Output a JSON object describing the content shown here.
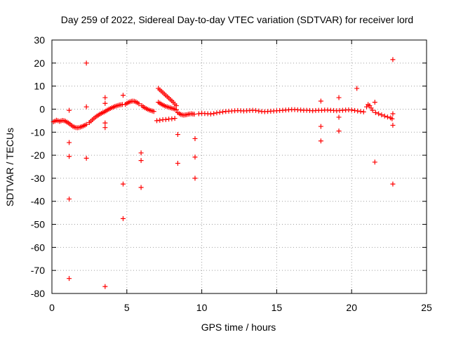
{
  "chart_data": {
    "type": "scatter",
    "title": "Day 259 of 2022, Sidereal Day-to-day VTEC variation (SDTVAR) for receiver lord",
    "xlabel": "GPS time / hours",
    "ylabel": "SDTVAR / TECUs",
    "xlim": [
      0,
      25
    ],
    "ylim": [
      -80,
      30
    ],
    "xticks": [
      0,
      5,
      10,
      15,
      20,
      25
    ],
    "yticks": [
      -80,
      -70,
      -60,
      -50,
      -40,
      -30,
      -20,
      -10,
      0,
      10,
      20,
      30
    ],
    "xtick_labels": [
      "0",
      "5",
      "10",
      "15",
      "20",
      "25"
    ],
    "ytick_labels": [
      "-80",
      "-70",
      "-60",
      "-50",
      "-40",
      "-30",
      "-20",
      "-10",
      "0",
      "10",
      "20",
      "30"
    ],
    "grid": true,
    "marker": "+",
    "color": "#ff0000",
    "series": [
      {
        "name": "main-trace",
        "points": [
          [
            0.1,
            -5.5
          ],
          [
            0.2,
            -5.2
          ],
          [
            0.3,
            -4.8
          ],
          [
            0.4,
            -5.0
          ],
          [
            0.5,
            -5.3
          ],
          [
            0.6,
            -5.1
          ],
          [
            0.7,
            -4.9
          ],
          [
            0.8,
            -5.0
          ],
          [
            0.9,
            -5.2
          ],
          [
            1.0,
            -5.6
          ],
          [
            1.1,
            -6.0
          ],
          [
            1.2,
            -6.5
          ],
          [
            1.3,
            -7.0
          ],
          [
            1.4,
            -7.5
          ],
          [
            1.5,
            -7.8
          ],
          [
            1.6,
            -8.0
          ],
          [
            1.7,
            -8.1
          ],
          [
            1.8,
            -8.0
          ],
          [
            1.9,
            -7.8
          ],
          [
            2.0,
            -7.6
          ],
          [
            2.1,
            -7.3
          ],
          [
            2.2,
            -7.0
          ],
          [
            2.3,
            -6.6
          ],
          [
            2.5,
            -5.8
          ],
          [
            2.6,
            -5.2
          ],
          [
            2.7,
            -4.6
          ],
          [
            2.8,
            -4.0
          ],
          [
            2.9,
            -3.5
          ],
          [
            3.0,
            -3.0
          ],
          [
            3.1,
            -2.6
          ],
          [
            3.2,
            -2.2
          ],
          [
            3.3,
            -1.8
          ],
          [
            3.4,
            -1.5
          ],
          [
            3.5,
            -1.2
          ],
          [
            3.6,
            -0.8
          ],
          [
            3.7,
            -0.4
          ],
          [
            3.8,
            0.0
          ],
          [
            3.9,
            0.3
          ],
          [
            4.0,
            0.6
          ],
          [
            4.1,
            0.9
          ],
          [
            4.2,
            1.2
          ],
          [
            4.3,
            1.4
          ],
          [
            4.4,
            1.6
          ],
          [
            4.5,
            1.8
          ],
          [
            4.6,
            1.9
          ],
          [
            4.7,
            2.0
          ],
          [
            4.9,
            2.1
          ],
          [
            5.0,
            2.5
          ],
          [
            5.1,
            2.9
          ],
          [
            5.2,
            3.2
          ],
          [
            5.3,
            3.4
          ],
          [
            5.4,
            3.5
          ],
          [
            5.5,
            3.4
          ],
          [
            5.6,
            3.2
          ],
          [
            5.7,
            2.8
          ],
          [
            5.8,
            2.3
          ],
          [
            6.0,
            1.5
          ],
          [
            6.1,
            1.0
          ],
          [
            6.2,
            0.6
          ],
          [
            6.3,
            0.2
          ],
          [
            6.4,
            -0.1
          ],
          [
            6.5,
            -0.4
          ],
          [
            6.6,
            -0.6
          ],
          [
            6.7,
            -0.8
          ],
          [
            6.8,
            -1.0
          ],
          [
            7.0,
            -5.0
          ],
          [
            7.2,
            -4.8
          ],
          [
            7.4,
            -4.6
          ],
          [
            7.6,
            -4.5
          ],
          [
            7.8,
            -4.3
          ],
          [
            8.0,
            -4.2
          ],
          [
            8.2,
            -4.0
          ],
          [
            7.1,
            3.0
          ],
          [
            7.2,
            2.6
          ],
          [
            7.3,
            2.2
          ],
          [
            7.4,
            1.8
          ],
          [
            7.5,
            1.5
          ],
          [
            7.6,
            1.2
          ],
          [
            7.7,
            1.0
          ],
          [
            7.8,
            0.8
          ],
          [
            7.9,
            0.6
          ],
          [
            8.0,
            0.4
          ],
          [
            8.1,
            0.2
          ],
          [
            8.2,
            0.0
          ],
          [
            8.3,
            -0.3
          ],
          [
            7.1,
            9.0
          ],
          [
            7.2,
            8.4
          ],
          [
            7.3,
            7.8
          ],
          [
            7.4,
            7.2
          ],
          [
            7.5,
            6.6
          ],
          [
            7.6,
            6.0
          ],
          [
            7.7,
            5.4
          ],
          [
            7.8,
            4.8
          ],
          [
            7.9,
            4.2
          ],
          [
            8.0,
            3.6
          ],
          [
            8.1,
            3.0
          ],
          [
            8.2,
            2.2
          ],
          [
            8.3,
            1.5
          ],
          [
            8.4,
            -1.5
          ],
          [
            8.5,
            -2.0
          ],
          [
            8.6,
            -2.3
          ],
          [
            8.7,
            -2.5
          ],
          [
            8.8,
            -2.6
          ],
          [
            8.9,
            -2.5
          ],
          [
            9.0,
            -2.4
          ],
          [
            9.1,
            -2.2
          ],
          [
            9.2,
            -2.1
          ],
          [
            9.3,
            -2.0
          ],
          [
            9.4,
            -2.1
          ],
          [
            9.5,
            -2.2
          ],
          [
            9.8,
            -2.0
          ],
          [
            10.0,
            -1.8
          ],
          [
            10.2,
            -1.9
          ],
          [
            10.4,
            -2.0
          ],
          [
            10.6,
            -2.1
          ],
          [
            10.8,
            -1.9
          ],
          [
            11.0,
            -1.6
          ],
          [
            11.2,
            -1.4
          ],
          [
            11.4,
            -1.2
          ],
          [
            11.6,
            -1.0
          ],
          [
            11.8,
            -0.9
          ],
          [
            12.0,
            -0.8
          ],
          [
            12.2,
            -0.7
          ],
          [
            12.4,
            -0.6
          ],
          [
            12.6,
            -0.7
          ],
          [
            12.8,
            -0.8
          ],
          [
            13.0,
            -0.7
          ],
          [
            13.2,
            -0.6
          ],
          [
            13.4,
            -0.5
          ],
          [
            13.6,
            -0.6
          ],
          [
            13.8,
            -0.8
          ],
          [
            14.0,
            -1.0
          ],
          [
            14.2,
            -1.1
          ],
          [
            14.4,
            -1.0
          ],
          [
            14.6,
            -0.9
          ],
          [
            14.8,
            -0.8
          ],
          [
            15.0,
            -0.7
          ],
          [
            15.2,
            -0.6
          ],
          [
            15.4,
            -0.5
          ],
          [
            15.6,
            -0.4
          ],
          [
            15.8,
            -0.3
          ],
          [
            16.0,
            -0.2
          ],
          [
            16.2,
            -0.2
          ],
          [
            16.4,
            -0.3
          ],
          [
            16.6,
            -0.4
          ],
          [
            16.8,
            -0.5
          ],
          [
            17.0,
            -0.5
          ],
          [
            17.2,
            -0.6
          ],
          [
            17.4,
            -0.7
          ],
          [
            17.6,
            -0.6
          ],
          [
            17.8,
            -0.5
          ],
          [
            18.0,
            -0.5
          ],
          [
            18.2,
            -0.4
          ],
          [
            18.4,
            -0.4
          ],
          [
            18.6,
            -0.5
          ],
          [
            18.8,
            -0.6
          ],
          [
            19.0,
            -0.7
          ],
          [
            19.2,
            -0.6
          ],
          [
            19.4,
            -0.5
          ],
          [
            19.6,
            -0.4
          ],
          [
            19.8,
            -0.3
          ],
          [
            20.0,
            -0.4
          ],
          [
            20.2,
            -0.6
          ],
          [
            20.4,
            -0.8
          ],
          [
            20.6,
            -1.0
          ],
          [
            20.8,
            -1.2
          ],
          [
            21.0,
            1.0
          ],
          [
            21.1,
            2.0
          ],
          [
            21.2,
            1.5
          ],
          [
            21.3,
            0.5
          ],
          [
            21.4,
            -0.5
          ],
          [
            21.6,
            -1.5
          ],
          [
            21.8,
            -2.0
          ],
          [
            22.0,
            -2.5
          ],
          [
            22.2,
            -3.0
          ],
          [
            22.4,
            -3.4
          ],
          [
            22.6,
            -3.8
          ],
          [
            22.7,
            -4.2
          ]
        ]
      },
      {
        "name": "outliers",
        "points": [
          [
            1.15,
            -0.5
          ],
          [
            1.15,
            -14.5
          ],
          [
            1.15,
            -20.5
          ],
          [
            1.15,
            -39.0
          ],
          [
            1.15,
            -73.5
          ],
          [
            2.3,
            20.0
          ],
          [
            2.3,
            1.0
          ],
          [
            2.3,
            -21.3
          ],
          [
            3.55,
            5.0
          ],
          [
            3.55,
            2.5
          ],
          [
            3.55,
            -6.0
          ],
          [
            3.55,
            -8.0
          ],
          [
            3.55,
            -77.0
          ],
          [
            4.75,
            6.0
          ],
          [
            4.75,
            -32.5
          ],
          [
            4.75,
            -47.5
          ],
          [
            5.95,
            -19.0
          ],
          [
            5.95,
            -22.3
          ],
          [
            5.95,
            -34.0
          ],
          [
            8.4,
            -11.0
          ],
          [
            8.4,
            -23.5
          ],
          [
            9.55,
            -12.8
          ],
          [
            9.55,
            -20.8
          ],
          [
            9.55,
            -30.0
          ],
          [
            17.95,
            3.5
          ],
          [
            17.95,
            -7.5
          ],
          [
            17.95,
            -13.8
          ],
          [
            19.15,
            5.0
          ],
          [
            19.15,
            -3.5
          ],
          [
            19.15,
            -9.5
          ],
          [
            20.35,
            9.0
          ],
          [
            21.55,
            3.0
          ],
          [
            21.55,
            -23.0
          ],
          [
            22.75,
            21.5
          ],
          [
            22.75,
            -2.0
          ],
          [
            22.75,
            -7.0
          ],
          [
            22.75,
            -32.5
          ]
        ]
      }
    ]
  }
}
